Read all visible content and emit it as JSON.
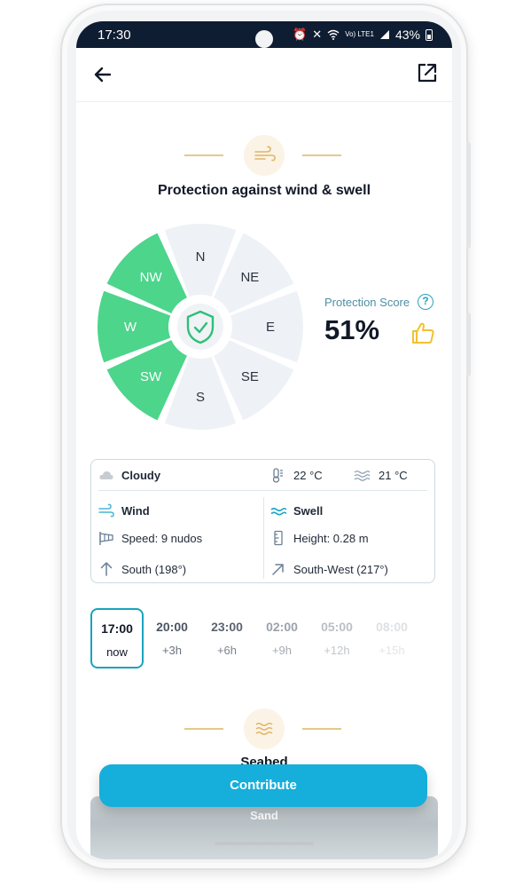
{
  "status_bar": {
    "time": "17:30",
    "network": "Vo) LTE1",
    "battery": "43%",
    "icons": [
      "alarm-icon",
      "mute-icon",
      "wifi-icon",
      "signal-icon",
      "battery-icon"
    ]
  },
  "app_bar": {
    "back_icon": "arrow-left-icon",
    "share_icon": "external-link-icon"
  },
  "protection": {
    "title": "Protection against wind & swell",
    "section_icon": "wind-icon",
    "directions": [
      "N",
      "NE",
      "E",
      "SE",
      "S",
      "SW",
      "W",
      "NW"
    ],
    "protected_directions": [
      "NW",
      "W",
      "SW"
    ],
    "center_icon": "shield-check-icon",
    "score_label": "Protection Score",
    "score_value": "51%",
    "help_icon": "question-circle-icon",
    "rating_icon": "thumbs-up-icon"
  },
  "weather": {
    "condition": "Cloudy",
    "air_temp": "22 °C",
    "water_temp": "21 °C",
    "wind": {
      "title": "Wind",
      "speed": "Speed: 9 nudos",
      "direction": "South (198°)"
    },
    "swell": {
      "title": "Swell",
      "height": "Height: 0.28 m",
      "direction": "South-West (217°)"
    }
  },
  "timeline": [
    {
      "time": "17:00",
      "rel": "now",
      "selected": true
    },
    {
      "time": "20:00",
      "rel": "+3h",
      "selected": false
    },
    {
      "time": "23:00",
      "rel": "+6h",
      "selected": false
    },
    {
      "time": "02:00",
      "rel": "+9h",
      "selected": false
    },
    {
      "time": "05:00",
      "rel": "+12h",
      "selected": false
    },
    {
      "time": "08:00",
      "rel": "+15h",
      "selected": false
    }
  ],
  "seabed": {
    "title": "Seabed",
    "section_icon": "waves-icon",
    "card_label": "Sand"
  },
  "contribute_label": "Contribute",
  "colors": {
    "status_bar": "#0f1d33",
    "protected_sector": "#4cd58b",
    "open_sector": "#eef2f6",
    "accent": "#16aedb",
    "deco": "#e6c78f",
    "thumb": "#f2c12e"
  }
}
